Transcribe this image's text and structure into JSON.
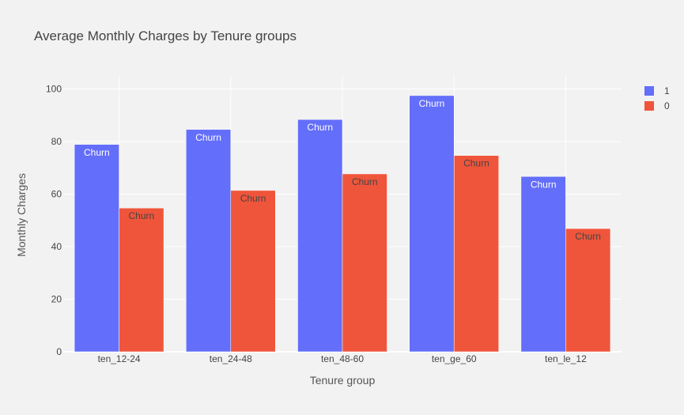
{
  "chart_data": {
    "type": "bar",
    "title": "Average Monthly Charges by Tenure groups",
    "xlabel": "Tenure group",
    "ylabel": "Monthly Charges",
    "categories": [
      "ten_12-24",
      "ten_24-48",
      "ten_48-60",
      "ten_ge_60",
      "ten_le_12"
    ],
    "ylim": [
      0,
      105
    ],
    "yticks": [
      0,
      20,
      40,
      60,
      80,
      100
    ],
    "grid": true,
    "legend_position": "top-right",
    "bar_text": "Churn",
    "series": [
      {
        "name": "1",
        "color": "#636efa",
        "label_color": "#ffffff",
        "values": [
          78.9,
          84.6,
          88.4,
          97.5,
          66.7
        ]
      },
      {
        "name": "0",
        "color": "#ef553b",
        "label_color": "#444444",
        "values": [
          54.7,
          61.4,
          67.7,
          74.7,
          46.9
        ]
      }
    ]
  }
}
